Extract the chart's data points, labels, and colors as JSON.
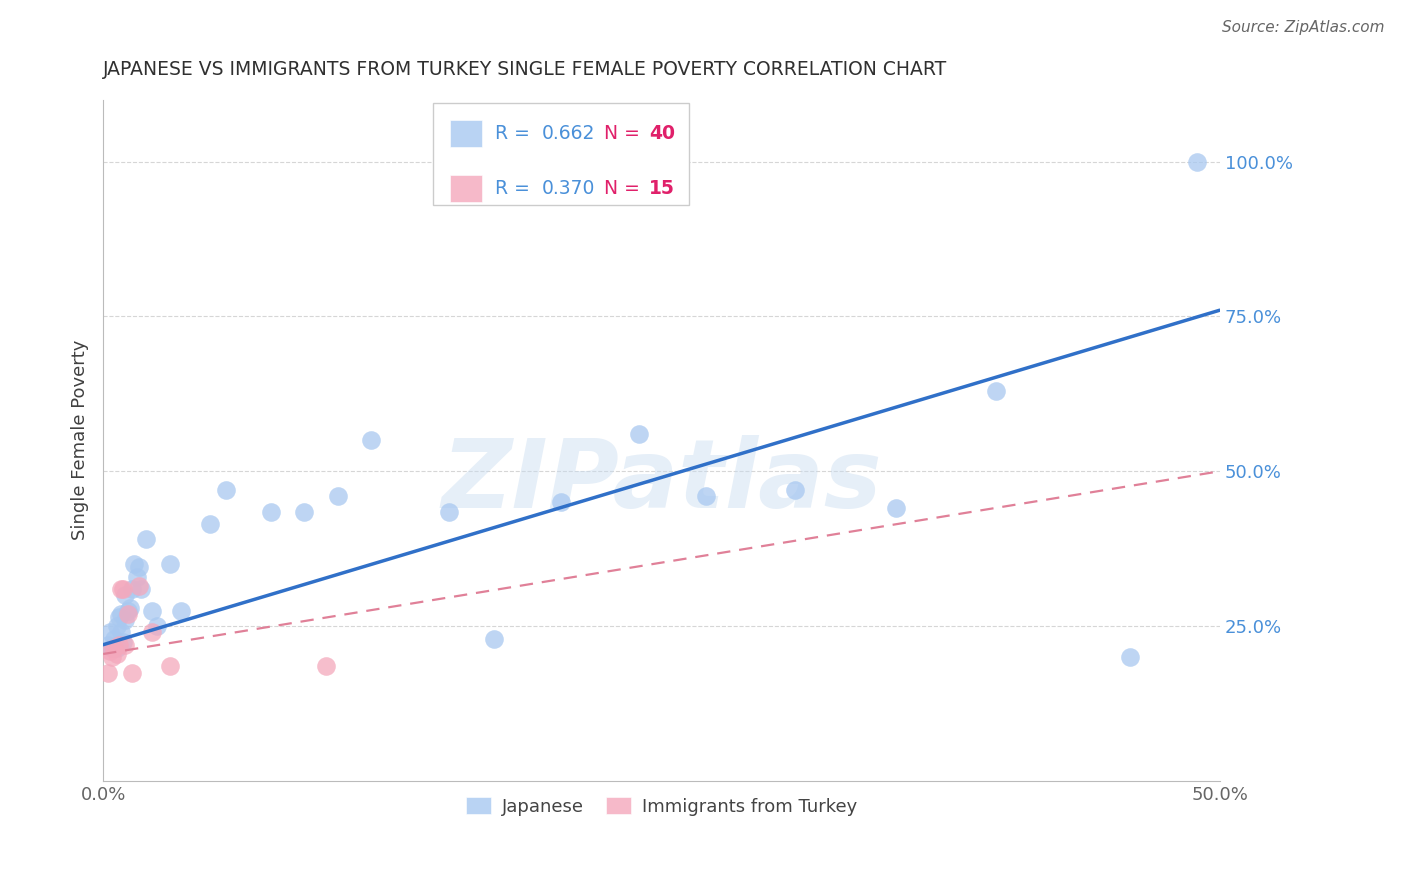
{
  "title": "JAPANESE VS IMMIGRANTS FROM TURKEY SINGLE FEMALE POVERTY CORRELATION CHART",
  "source": "Source: ZipAtlas.com",
  "ylabel": "Single Female Poverty",
  "watermark": "ZIPatlas",
  "xlim": [
    0,
    0.5
  ],
  "ylim": [
    0,
    1.1
  ],
  "xtick_vals": [
    0.0,
    0.1,
    0.2,
    0.3,
    0.4,
    0.5
  ],
  "xtick_labels": [
    "0.0%",
    "",
    "",
    "",
    "",
    "50.0%"
  ],
  "ytick_positions_right": [
    0.25,
    0.5,
    0.75,
    1.0
  ],
  "ytick_labels_right": [
    "25.0%",
    "50.0%",
    "75.0%",
    "100.0%"
  ],
  "japanese_R": "0.662",
  "japanese_N": "40",
  "turkey_R": "0.370",
  "turkey_N": "15",
  "japanese_color": "#A8C8F0",
  "turkey_color": "#F4A8BC",
  "line_japanese_color": "#3070C8",
  "line_turkey_color": "#E08098",
  "grid_color": "#CCCCCC",
  "background_color": "#FFFFFF",
  "title_color": "#303030",
  "axis_label_color": "#404040",
  "tick_color_right": "#4A90D9",
  "legend_r_color": "#4A90D9",
  "legend_n_color": "#E0206A",
  "japanese_x": [
    0.002,
    0.003,
    0.004,
    0.005,
    0.006,
    0.006,
    0.007,
    0.008,
    0.008,
    0.009,
    0.01,
    0.01,
    0.011,
    0.012,
    0.013,
    0.014,
    0.015,
    0.016,
    0.017,
    0.019,
    0.022,
    0.024,
    0.03,
    0.035,
    0.048,
    0.055,
    0.075,
    0.09,
    0.105,
    0.12,
    0.155,
    0.175,
    0.205,
    0.24,
    0.27,
    0.31,
    0.355,
    0.4,
    0.46,
    0.49
  ],
  "japanese_y": [
    0.22,
    0.24,
    0.215,
    0.23,
    0.25,
    0.215,
    0.265,
    0.24,
    0.27,
    0.225,
    0.26,
    0.3,
    0.275,
    0.28,
    0.31,
    0.35,
    0.33,
    0.345,
    0.31,
    0.39,
    0.275,
    0.25,
    0.35,
    0.275,
    0.415,
    0.47,
    0.435,
    0.435,
    0.46,
    0.55,
    0.435,
    0.23,
    0.45,
    0.56,
    0.46,
    0.47,
    0.44,
    0.63,
    0.2,
    1.0
  ],
  "turkey_x": [
    0.002,
    0.003,
    0.004,
    0.005,
    0.006,
    0.007,
    0.008,
    0.009,
    0.01,
    0.011,
    0.013,
    0.016,
    0.022,
    0.03,
    0.1
  ],
  "turkey_y": [
    0.175,
    0.21,
    0.2,
    0.215,
    0.205,
    0.22,
    0.31,
    0.31,
    0.22,
    0.27,
    0.175,
    0.315,
    0.24,
    0.185,
    0.185
  ],
  "line_japanese_x0": 0.0,
  "line_japanese_y0": 0.22,
  "line_japanese_x1": 0.5,
  "line_japanese_y1": 0.76,
  "line_turkey_x0": 0.0,
  "line_turkey_y0": 0.205,
  "line_turkey_x1": 0.5,
  "line_turkey_y1": 0.5
}
